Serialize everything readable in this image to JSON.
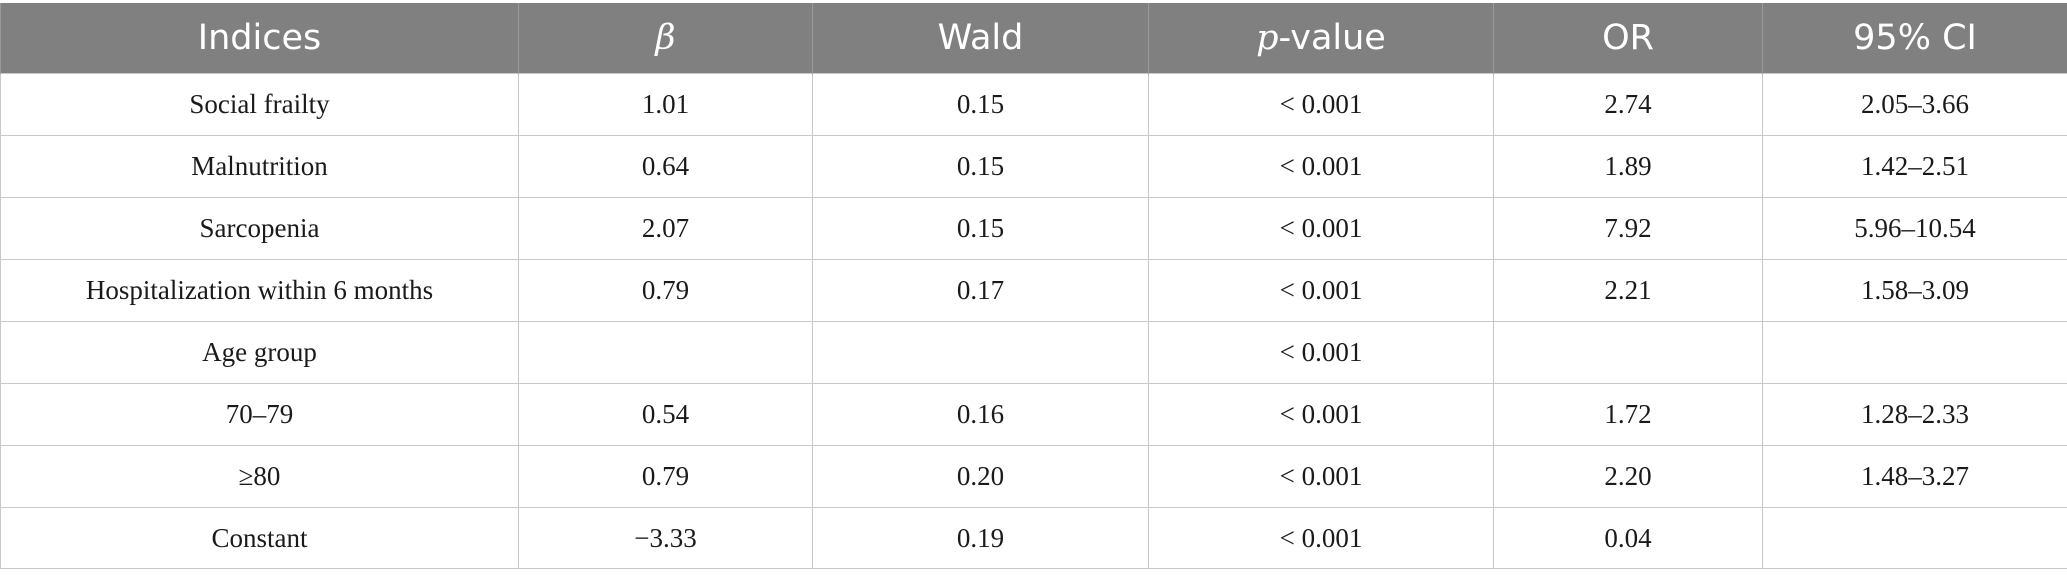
{
  "table": {
    "columns": [
      {
        "label": "Indices",
        "italic_part": "",
        "rest": ""
      },
      {
        "label": "",
        "italic_part": "β",
        "rest": ""
      },
      {
        "label": "Wald",
        "italic_part": "",
        "rest": ""
      },
      {
        "label": "",
        "italic_part": "p",
        "rest": "-value"
      },
      {
        "label": "OR",
        "italic_part": "",
        "rest": ""
      },
      {
        "label": "95% CI",
        "italic_part": "",
        "rest": ""
      }
    ],
    "rows": [
      [
        "Social frailty",
        "1.01",
        "0.15",
        "< 0.001",
        "2.74",
        "2.05–3.66"
      ],
      [
        "Malnutrition",
        "0.64",
        "0.15",
        "< 0.001",
        "1.89",
        "1.42–2.51"
      ],
      [
        "Sarcopenia",
        "2.07",
        "0.15",
        "< 0.001",
        "7.92",
        "5.96–10.54"
      ],
      [
        "Hospitalization within 6 months",
        "0.79",
        "0.17",
        "< 0.001",
        "2.21",
        "1.58–3.09"
      ],
      [
        "Age group",
        "",
        "",
        "< 0.001",
        "",
        ""
      ],
      [
        "70–79",
        "0.54",
        "0.16",
        "< 0.001",
        "1.72",
        "1.28–2.33"
      ],
      [
        "≥80",
        "0.79",
        "0.20",
        "< 0.001",
        "2.20",
        "1.48–3.27"
      ],
      [
        "Constant",
        "−3.33",
        "0.19",
        "< 0.001",
        "0.04",
        ""
      ]
    ]
  }
}
